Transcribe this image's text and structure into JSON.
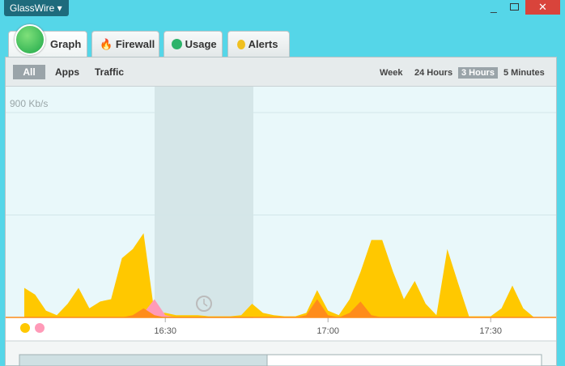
{
  "app": {
    "name": "GlassWire"
  },
  "tabs": [
    "Graph",
    "Firewall",
    "Usage",
    "Alerts"
  ],
  "filters": [
    "All",
    "Apps",
    "Traffic"
  ],
  "ranges": [
    "Week",
    "24 Hours",
    "3 Hours",
    "5 Minutes"
  ],
  "chart_data": {
    "type": "area",
    "x": [
      "16:04",
      "16:06",
      "16:08",
      "16:10",
      "16:12",
      "16:14",
      "16:16",
      "16:18",
      "16:20",
      "16:22",
      "16:24",
      "16:26",
      "16:28",
      "16:30",
      "16:32",
      "16:34",
      "16:36",
      "16:38",
      "16:40",
      "16:42",
      "16:44",
      "16:46",
      "16:48",
      "16:50",
      "16:52",
      "16:54",
      "16:56",
      "16:58",
      "17:00",
      "17:02",
      "17:04",
      "17:06",
      "17:08",
      "17:10",
      "17:12",
      "17:14",
      "17:16",
      "17:18",
      "17:20",
      "17:22",
      "17:24",
      "17:26",
      "17:28",
      "17:30",
      "17:32",
      "17:34",
      "17:36",
      "17:38"
    ],
    "series": [
      {
        "color": "#ffc800",
        "values": [
          130,
          100,
          30,
          10,
          60,
          130,
          40,
          70,
          80,
          260,
          300,
          370,
          20,
          20,
          10,
          10,
          10,
          5,
          5,
          5,
          10,
          60,
          20,
          10,
          5,
          5,
          20,
          120,
          30,
          10,
          80,
          200,
          340,
          340,
          200,
          80,
          160,
          60,
          10,
          300,
          150,
          5,
          5,
          5,
          40,
          140,
          40,
          0
        ]
      },
      {
        "color": "#ff9ab8",
        "values": [
          0,
          0,
          0,
          0,
          0,
          0,
          0,
          0,
          0,
          0,
          0,
          20,
          80,
          10,
          0,
          0,
          0,
          0,
          0,
          0,
          0,
          0,
          0,
          0,
          0,
          0,
          0,
          0,
          0,
          0,
          0,
          0,
          0,
          0,
          0,
          0,
          0,
          0,
          0,
          0,
          0,
          0,
          0,
          0,
          0,
          0,
          0,
          0
        ]
      },
      {
        "color": "#ff8c1a",
        "values": [
          0,
          0,
          0,
          0,
          0,
          0,
          0,
          0,
          0,
          0,
          10,
          40,
          10,
          0,
          0,
          0,
          0,
          0,
          0,
          0,
          0,
          0,
          0,
          0,
          0,
          0,
          10,
          80,
          10,
          0,
          20,
          70,
          10,
          0,
          0,
          0,
          0,
          0,
          0,
          0,
          0,
          0,
          0,
          0,
          0,
          0,
          0,
          0
        ]
      }
    ],
    "ylim": [
      0,
      900
    ],
    "yticks": [
      {
        "value": 450,
        "label": null
      },
      {
        "value": 900,
        "label": "900 Kb/s"
      }
    ],
    "xticks": [
      "16:30",
      "17:00",
      "17:30"
    ]
  }
}
